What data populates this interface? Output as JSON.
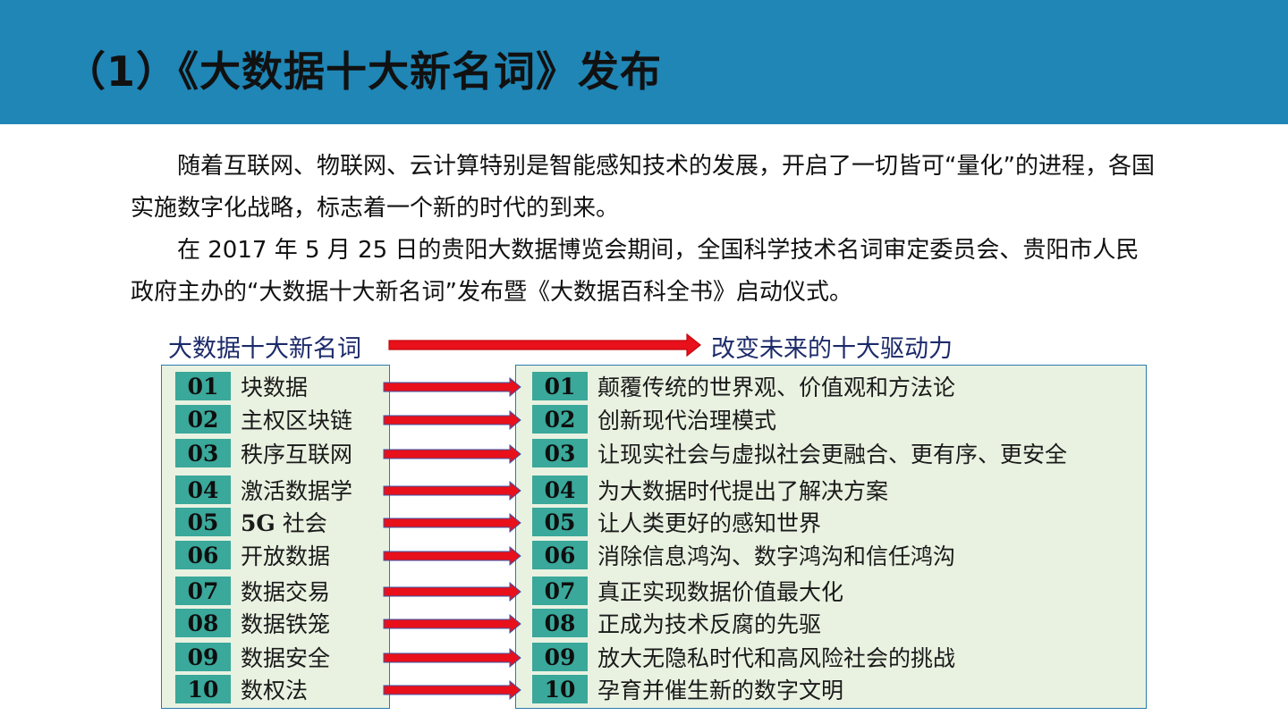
{
  "title": "（1）《大数据十大新名词》发布",
  "paragraphs": [
    "随着互联网、物联网、云计算特别是智能感知技术的发展，开启了一切皆可“量化”的进程，各国实施数字化战略，标志着一个新的时代的到来。",
    "在 2017 年 5 月 25 日的贵阳大数据博览会期间，全国科学技术名词审定委员会、贵阳市人民政府主办的“大数据十大新名词”发布暨《大数据百科全书》启动仪式。"
  ],
  "diagram": {
    "left_heading": "大数据十大新名词",
    "right_heading": "改变未来的十大驱动力",
    "badge_color": "#3aa89a",
    "panel_color": "#e9f2e1",
    "arrow_color": "#e8101a",
    "left_items": [
      {
        "num": "01",
        "label": "块数据"
      },
      {
        "num": "02",
        "label": "主权区块链"
      },
      {
        "num": "03",
        "label": "秩序互联网"
      },
      {
        "num": "04",
        "label": "激活数据学"
      },
      {
        "num": "05",
        "label": "5G 社会"
      },
      {
        "num": "06",
        "label": "开放数据"
      },
      {
        "num": "07",
        "label": "数据交易"
      },
      {
        "num": "08",
        "label": "数据铁笼"
      },
      {
        "num": "09",
        "label": "数据安全"
      },
      {
        "num": "10",
        "label": "数权法"
      }
    ],
    "right_items": [
      {
        "num": "01",
        "label": "颠覆传统的世界观、价值观和方法论"
      },
      {
        "num": "02",
        "label": "创新现代治理模式"
      },
      {
        "num": "03",
        "label": "让现实社会与虚拟社会更融合、更有序、更安全"
      },
      {
        "num": "04",
        "label": "为大数据时代提出了解决方案"
      },
      {
        "num": "05",
        "label": "让人类更好的感知世界"
      },
      {
        "num": "06",
        "label": "消除信息鸿沟、数字鸿沟和信任鸿沟"
      },
      {
        "num": "07",
        "label": "真正实现数据价值最大化"
      },
      {
        "num": "08",
        "label": "正成为技术反腐的先驱"
      },
      {
        "num": "09",
        "label": "放大无隐私时代和高风险社会的挑战"
      },
      {
        "num": "10",
        "label": "孕育并催生新的数字文明"
      }
    ]
  }
}
